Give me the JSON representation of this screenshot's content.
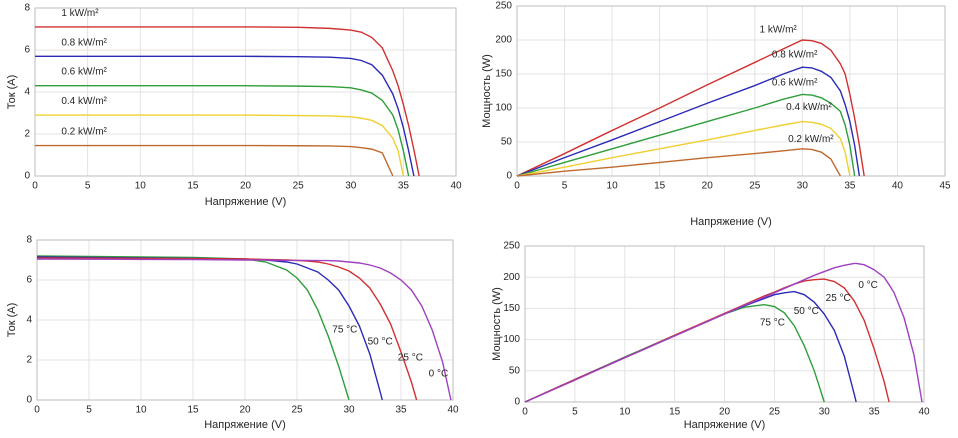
{
  "chart_data": [
    {
      "type": "line",
      "xlabel": "Напряжение (V)",
      "ylabel": "Ток (A)",
      "x": [
        0,
        5,
        10,
        15,
        20,
        25,
        28,
        30,
        31,
        32,
        33,
        34,
        34.5,
        35,
        35.5,
        36,
        36.5
      ],
      "xlim": [
        0,
        40
      ],
      "ylim": [
        0,
        8
      ],
      "xticks": [
        0,
        5,
        10,
        15,
        20,
        25,
        30,
        35,
        40
      ],
      "yticks": [
        0,
        2,
        4,
        6,
        8
      ],
      "grid": true,
      "series": [
        {
          "name": "1 kW/m²",
          "color": "#d23030",
          "values": [
            7.1,
            7.1,
            7.1,
            7.1,
            7.1,
            7.08,
            7.03,
            6.95,
            6.85,
            6.6,
            6.1,
            5.0,
            4.3,
            3.4,
            2.4,
            1.25,
            0
          ]
        },
        {
          "name": "0.8 kW/m²",
          "color": "#2b2bb8",
          "values": [
            5.7,
            5.7,
            5.7,
            5.7,
            5.7,
            5.68,
            5.66,
            5.6,
            5.5,
            5.3,
            4.8,
            3.9,
            3.2,
            2.3,
            1.2,
            0,
            null
          ]
        },
        {
          "name": "0.6 kW/m²",
          "color": "#2e9e3a",
          "values": [
            4.3,
            4.3,
            4.3,
            4.3,
            4.3,
            4.28,
            4.26,
            4.2,
            4.1,
            3.95,
            3.6,
            2.9,
            2.2,
            1.2,
            0,
            null,
            null
          ]
        },
        {
          "name": "0.4 kW/m²",
          "color": "#f0d030",
          "values": [
            2.9,
            2.9,
            2.9,
            2.9,
            2.9,
            2.88,
            2.86,
            2.82,
            2.75,
            2.65,
            2.4,
            1.8,
            1.2,
            0,
            null,
            null,
            null
          ]
        },
        {
          "name": "0.2 kW/m²",
          "color": "#c06a30",
          "values": [
            1.45,
            1.45,
            1.45,
            1.45,
            1.45,
            1.44,
            1.43,
            1.4,
            1.35,
            1.28,
            1.1,
            0,
            null,
            null,
            null,
            null,
            null
          ]
        }
      ]
    },
    {
      "type": "line",
      "xlabel": "Напряжение (V)",
      "ylabel": "Мощность  (W)",
      "x": [
        0,
        5,
        10,
        15,
        20,
        25,
        28,
        30,
        31,
        32,
        33,
        34,
        34.5,
        35,
        35.5,
        36,
        36.5
      ],
      "xlim": [
        0,
        45
      ],
      "ylim": [
        0,
        250
      ],
      "xticks": [
        0,
        5,
        10,
        15,
        20,
        25,
        30,
        35,
        40,
        45
      ],
      "yticks": [
        0,
        50,
        100,
        150,
        200,
        250
      ],
      "grid": true,
      "series": [
        {
          "name": "1 kW/m²",
          "color": "#d23030",
          "values": [
            0,
            33,
            67,
            100,
            134,
            167,
            187,
            200,
            199,
            195,
            185,
            165,
            150,
            120,
            85,
            45,
            0
          ]
        },
        {
          "name": "0.8 kW/m²",
          "color": "#2b2bb8",
          "values": [
            0,
            27,
            53,
            80,
            107,
            133,
            150,
            160,
            159,
            154,
            145,
            125,
            105,
            80,
            45,
            0,
            null
          ]
        },
        {
          "name": "0.6 kW/m²",
          "color": "#2e9e3a",
          "values": [
            0,
            20,
            40,
            60,
            80,
            100,
            113,
            120,
            119,
            115,
            107,
            95,
            75,
            45,
            0,
            null,
            null
          ]
        },
        {
          "name": "0.4 kW/m²",
          "color": "#f0d030",
          "values": [
            0,
            13,
            27,
            40,
            53,
            67,
            75,
            80,
            79,
            76,
            70,
            55,
            35,
            0,
            null,
            null,
            null
          ]
        },
        {
          "name": "0.2 kW/m²",
          "color": "#c06a30",
          "values": [
            0,
            7,
            13,
            20,
            27,
            33,
            37,
            40,
            39,
            35,
            25,
            0,
            null,
            null,
            null,
            null,
            null
          ]
        }
      ]
    },
    {
      "type": "line",
      "xlabel": "Напряжение (V)",
      "ylabel": "Ток (A)",
      "x": [
        0,
        5,
        10,
        15,
        20,
        22,
        24,
        25,
        26,
        27,
        28,
        29,
        30,
        31,
        32,
        33,
        33.2,
        34,
        35,
        36,
        36.5,
        37,
        38,
        39,
        39.8
      ],
      "xlim": [
        0,
        40
      ],
      "ylim": [
        0,
        8
      ],
      "xticks": [
        0,
        5,
        10,
        15,
        20,
        25,
        30,
        35,
        40
      ],
      "yticks": [
        0,
        2,
        4,
        6,
        8
      ],
      "grid": true,
      "series": [
        {
          "name": "75 °C",
          "color": "#2e9e3a",
          "values": [
            7.2,
            7.18,
            7.15,
            7.13,
            7.05,
            6.9,
            6.5,
            6.1,
            5.5,
            4.5,
            3.2,
            1.7,
            0,
            null,
            null,
            null,
            null,
            null,
            null,
            null,
            null,
            null,
            null,
            null,
            null
          ]
        },
        {
          "name": "50 °C",
          "color": "#2b2bb8",
          "values": [
            7.15,
            7.13,
            7.1,
            7.08,
            7.05,
            7.0,
            6.9,
            6.8,
            6.6,
            6.4,
            6.0,
            5.5,
            4.7,
            3.7,
            2.3,
            0.4,
            0,
            null,
            null,
            null,
            null,
            null,
            null,
            null,
            null
          ]
        },
        {
          "name": "25 °C",
          "color": "#d23030",
          "values": [
            7.1,
            7.09,
            7.08,
            7.07,
            7.05,
            7.03,
            7.0,
            6.98,
            6.95,
            6.9,
            6.8,
            6.65,
            6.45,
            6.1,
            5.6,
            4.8,
            4.6,
            3.8,
            2.4,
            0.9,
            0,
            null,
            null,
            null,
            null
          ]
        },
        {
          "name": "0 °C",
          "color": "#a040c0",
          "values": [
            7.05,
            7.04,
            7.03,
            7.02,
            7.0,
            7.0,
            6.98,
            6.98,
            6.98,
            6.97,
            6.97,
            6.95,
            6.9,
            6.85,
            6.75,
            6.6,
            6.55,
            6.35,
            6.0,
            5.5,
            5.1,
            4.7,
            3.5,
            1.9,
            0
          ]
        }
      ]
    },
    {
      "type": "line",
      "xlabel": "Напряжение (V)",
      "ylabel": "Мощность  (W)",
      "x": [
        0,
        5,
        10,
        15,
        20,
        22,
        24,
        25,
        26,
        27,
        28,
        29,
        30,
        31,
        32,
        33,
        33.2,
        34,
        35,
        36,
        36.5,
        37,
        38,
        39,
        39.8
      ],
      "xlim": [
        0,
        40
      ],
      "ylim": [
        0,
        250
      ],
      "xticks": [
        0,
        5,
        10,
        15,
        20,
        25,
        30,
        35,
        40
      ],
      "yticks": [
        0,
        50,
        100,
        150,
        200,
        250
      ],
      "grid": true,
      "series": [
        {
          "name": "75 °C",
          "color": "#2e9e3a",
          "values": [
            0,
            36,
            72,
            107,
            141,
            152,
            156,
            153,
            143,
            122,
            90,
            50,
            0,
            null,
            null,
            null,
            null,
            null,
            null,
            null,
            null,
            null,
            null,
            null,
            null
          ]
        },
        {
          "name": "50 °C",
          "color": "#2b2bb8",
          "values": [
            0,
            36,
            71,
            106,
            141,
            154,
            166,
            172,
            175,
            177,
            172,
            160,
            141,
            115,
            74,
            13,
            0,
            null,
            null,
            null,
            null,
            null,
            null,
            null,
            null
          ]
        },
        {
          "name": "25 °C",
          "color": "#d23030",
          "values": [
            0,
            36,
            71,
            107,
            142,
            156,
            170,
            176,
            183,
            189,
            194,
            196,
            197,
            193,
            183,
            162,
            156,
            131,
            85,
            33,
            0,
            null,
            null,
            null,
            null
          ]
        },
        {
          "name": "0 °C",
          "color": "#a040c0",
          "values": [
            0,
            35,
            71,
            106,
            141,
            155,
            168,
            175,
            182,
            189,
            196,
            203,
            209,
            215,
            219,
            222,
            222,
            220,
            212,
            200,
            188,
            175,
            135,
            75,
            0
          ]
        }
      ]
    }
  ]
}
